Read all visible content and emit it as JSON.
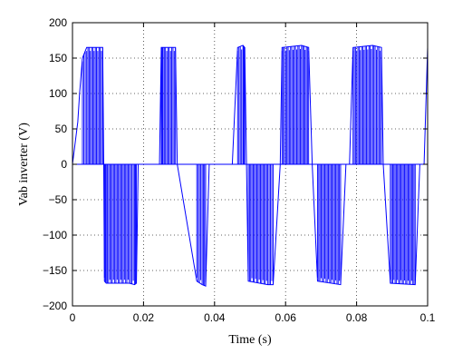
{
  "chart_data": {
    "type": "line",
    "title": "",
    "xlabel": "Time (s)",
    "ylabel": "Vab inverter (V)",
    "xlim": [
      0,
      0.1
    ],
    "ylim": [
      -200,
      200
    ],
    "x_ticks": [
      "0",
      "0.02",
      "0.04",
      "0.06",
      "0.08",
      "0.1"
    ],
    "y_ticks": [
      "200",
      "150",
      "100",
      "50",
      "0",
      "−50",
      "−100",
      "−150",
      "−200"
    ],
    "grid": true,
    "legend": "none",
    "series": [
      {
        "color": "#0000ff",
        "x": [
          0,
          0.0005,
          0.0015,
          0.002,
          0.0028,
          0.004,
          0.0085,
          0.0088,
          0.009,
          0.0095,
          0.016,
          0.0175,
          0.018,
          0.0185,
          0.0195,
          0.0245,
          0.025,
          0.0255,
          0.029,
          0.0295,
          0.035,
          0.0365,
          0.0375,
          0.0385,
          0.045,
          0.0465,
          0.048,
          0.0485,
          0.049,
          0.0495,
          0.055,
          0.0565,
          0.0585,
          0.059,
          0.0645,
          0.0665,
          0.0675,
          0.069,
          0.0755,
          0.077,
          0.078,
          0.079,
          0.0845,
          0.087,
          0.0875,
          0.0895,
          0.0965,
          0.0978,
          0.0985,
          0.099,
          0.1
        ],
        "y": [
          0,
          20,
          60,
          100,
          150,
          165,
          165,
          0,
          -165,
          -168,
          -168,
          -170,
          -168,
          0,
          0,
          0,
          165,
          165,
          165,
          0,
          -165,
          -170,
          -172,
          0,
          0,
          165,
          168,
          165,
          0,
          -165,
          -170,
          -170,
          0,
          165,
          168,
          165,
          0,
          -165,
          -170,
          0,
          0,
          165,
          168,
          165,
          0,
          -168,
          -170,
          0,
          0,
          0,
          165
        ]
      }
    ]
  }
}
